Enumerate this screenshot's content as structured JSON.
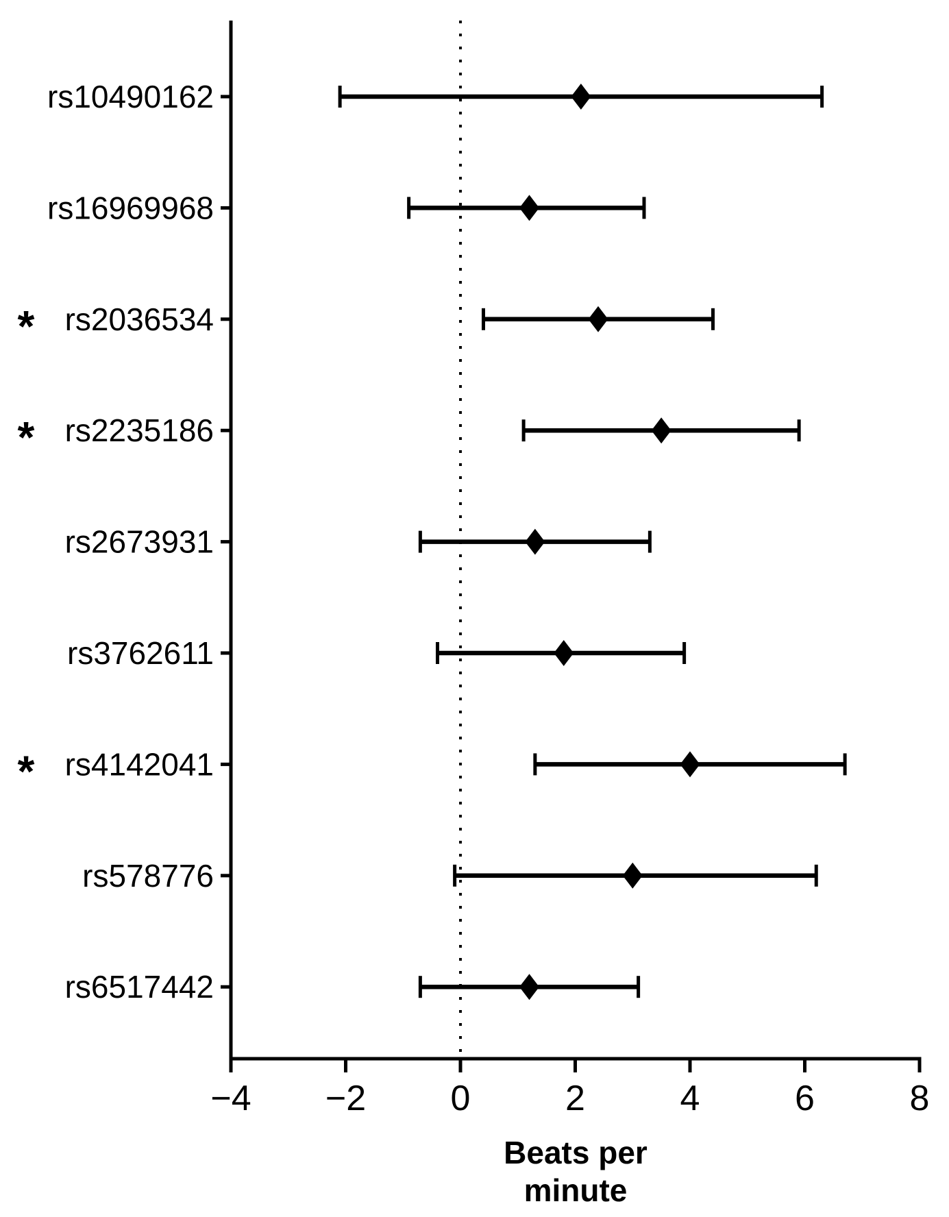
{
  "figure": {
    "background_color": "#ffffff",
    "ink_color": "#000000"
  },
  "chart_data": {
    "type": "scatter",
    "subtype": "forest-plot",
    "orientation": "horizontal",
    "title": "",
    "xlabel_lines": [
      "Beats per",
      "minute"
    ],
    "ylabel": "",
    "xlim": [
      -4,
      8
    ],
    "xticks": [
      -4,
      -2,
      0,
      2,
      4,
      6,
      8
    ],
    "xtick_labels": [
      "−4",
      "−2",
      "0",
      "2",
      "4",
      "6",
      "8"
    ],
    "reference_line_x": 0,
    "reference_line_style": "dotted",
    "grid": false,
    "legend": false,
    "marker": "diamond",
    "significance_marker": "*",
    "rows": [
      {
        "label": "rs10490162",
        "significant": false,
        "estimate": 2.1,
        "ci_low": -2.1,
        "ci_high": 6.3
      },
      {
        "label": "rs16969968",
        "significant": false,
        "estimate": 1.2,
        "ci_low": -0.9,
        "ci_high": 3.2
      },
      {
        "label": "rs2036534",
        "significant": true,
        "estimate": 2.4,
        "ci_low": 0.4,
        "ci_high": 4.4
      },
      {
        "label": "rs2235186",
        "significant": true,
        "estimate": 3.5,
        "ci_low": 1.1,
        "ci_high": 5.9
      },
      {
        "label": "rs2673931",
        "significant": false,
        "estimate": 1.3,
        "ci_low": -0.7,
        "ci_high": 3.3
      },
      {
        "label": "rs3762611",
        "significant": false,
        "estimate": 1.8,
        "ci_low": -0.4,
        "ci_high": 3.9
      },
      {
        "label": "rs4142041",
        "significant": true,
        "estimate": 4.0,
        "ci_low": 1.3,
        "ci_high": 6.7
      },
      {
        "label": "rs578776",
        "significant": false,
        "estimate": 3.0,
        "ci_low": -0.1,
        "ci_high": 6.2
      },
      {
        "label": "rs6517442",
        "significant": false,
        "estimate": 1.2,
        "ci_low": -0.7,
        "ci_high": 3.1
      }
    ]
  }
}
